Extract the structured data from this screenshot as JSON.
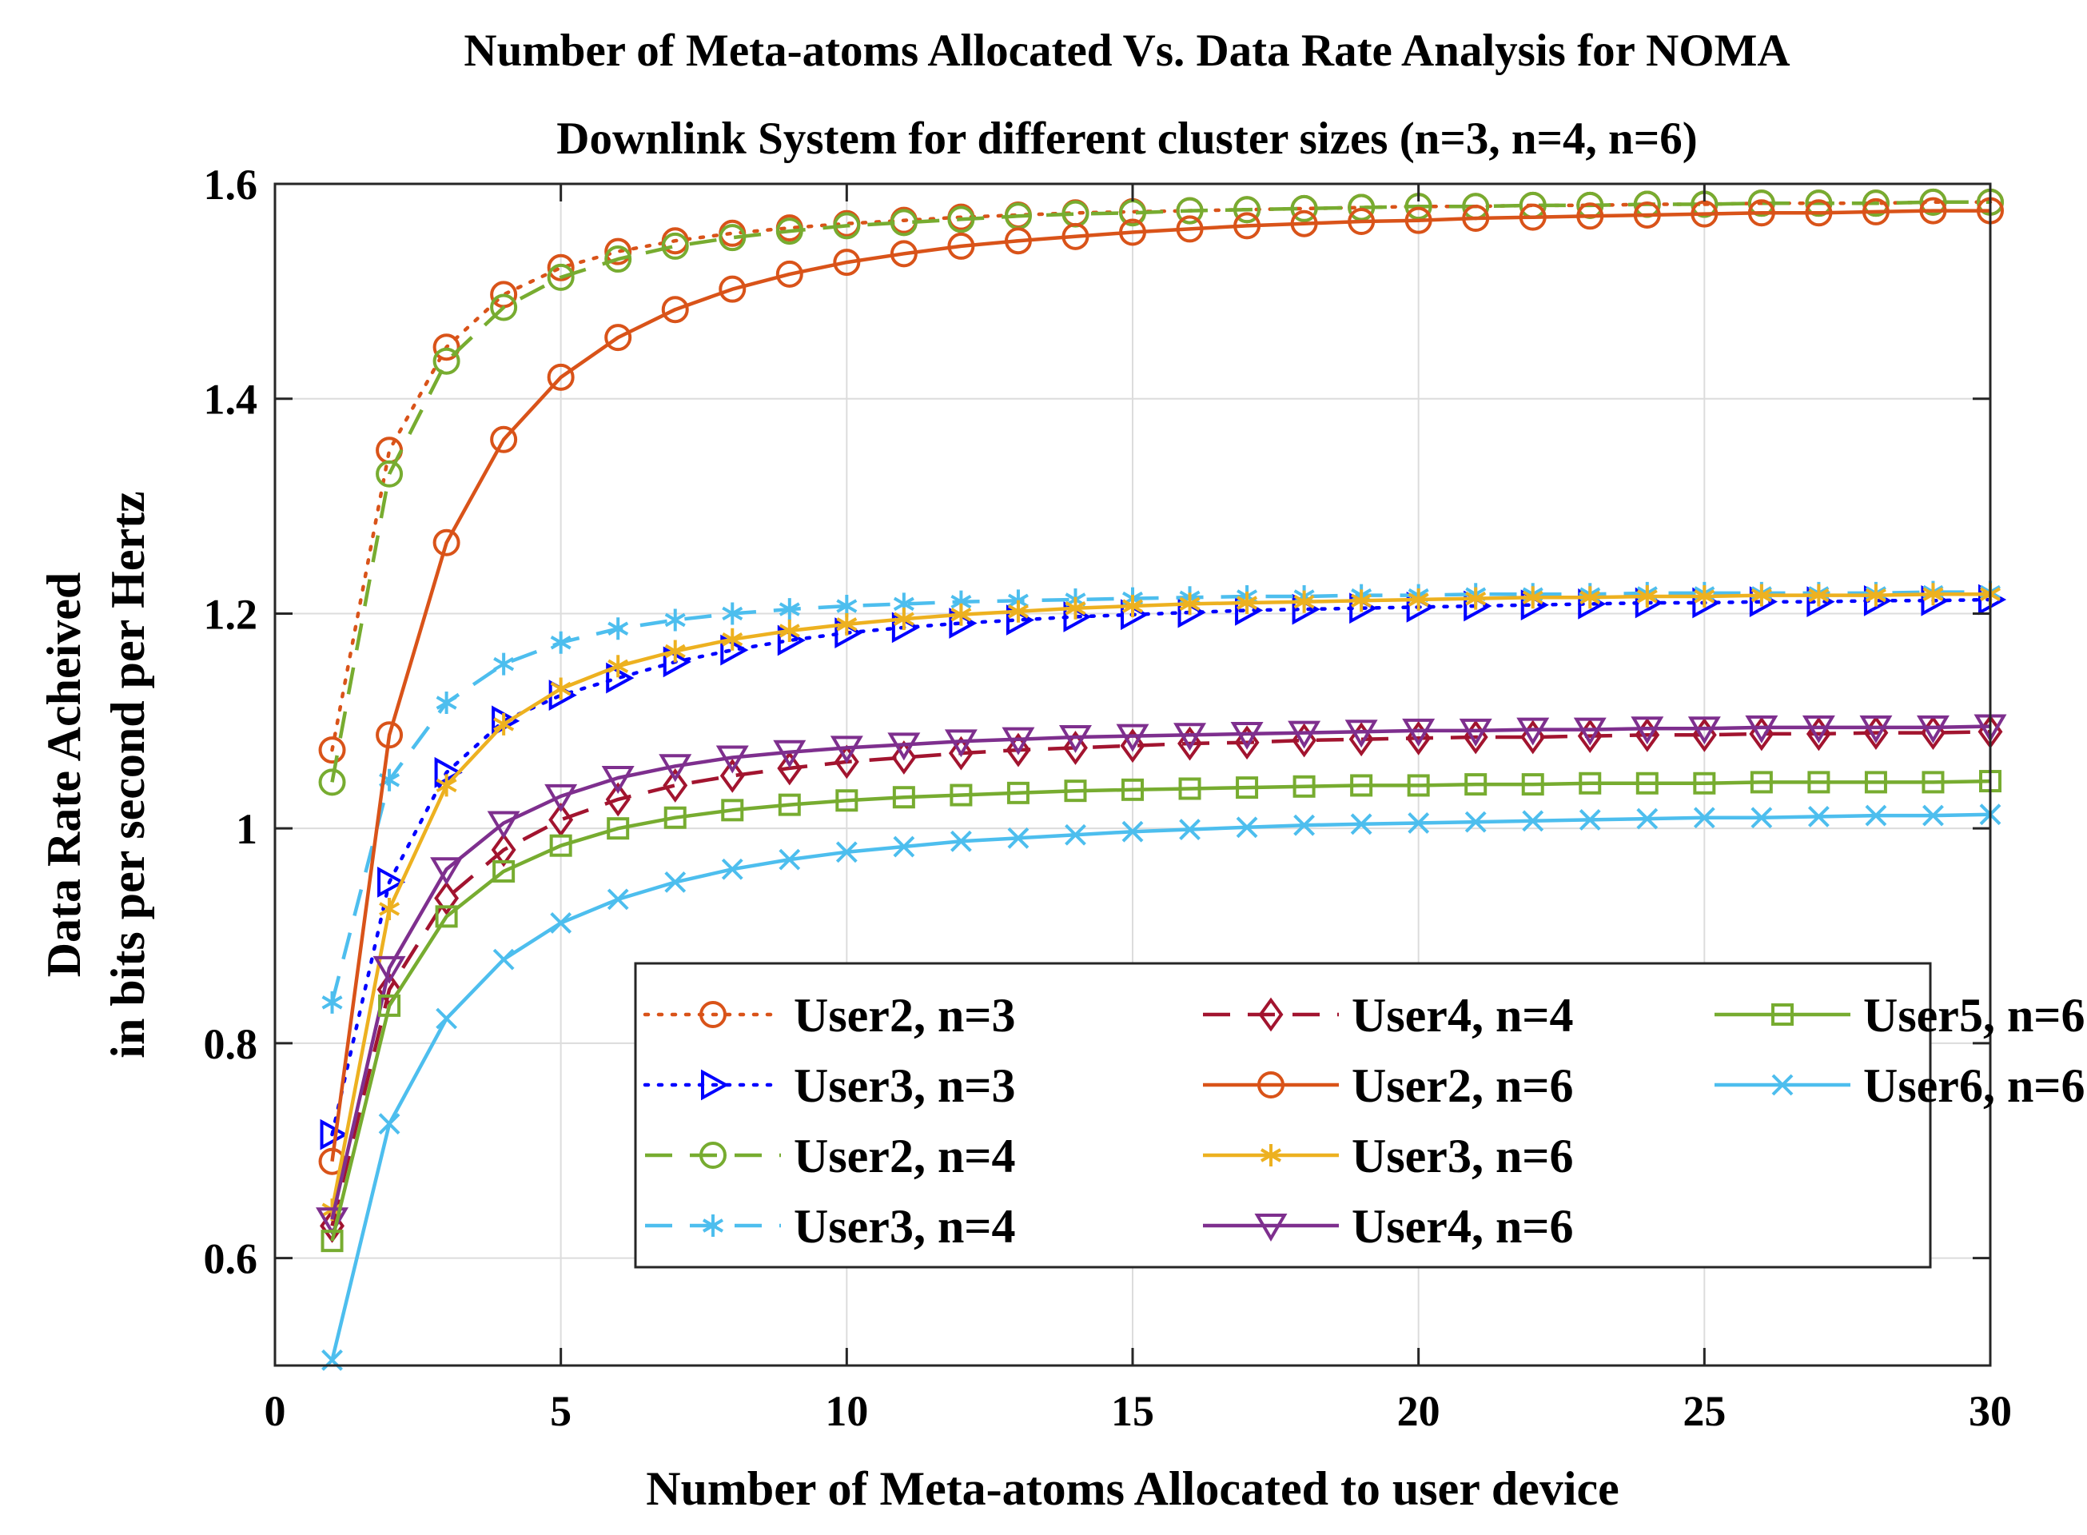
{
  "chart_data": {
    "type": "line",
    "title_lines": [
      "Number of Meta-atoms Allocated Vs. Data Rate Analysis for NOMA",
      "Downlink System for different cluster sizes (n=3, n=4, n=6)"
    ],
    "xlabel": "Number of Meta-atoms Allocated to user device",
    "ylabel_lines": [
      "Data Rate Acheived",
      "in bits per second per Hertz"
    ],
    "xlim": [
      0,
      30
    ],
    "ylim": [
      0.5,
      1.6
    ],
    "xticks": [
      0,
      5,
      10,
      15,
      20,
      25,
      30
    ],
    "xtick_labels": [
      "0",
      "5",
      "10",
      "15",
      "20",
      "25",
      "30"
    ],
    "yticks": [
      0.6,
      0.8,
      1.0,
      1.2,
      1.4,
      1.6
    ],
    "ytick_labels": [
      "0.6",
      "0.8",
      "1",
      "1.2",
      "1.4",
      "1.6"
    ],
    "grid": true,
    "legend_position": "bottom-right",
    "x": [
      1,
      2,
      3,
      4,
      5,
      6,
      7,
      8,
      9,
      10,
      11,
      12,
      13,
      14,
      15,
      16,
      17,
      18,
      19,
      20,
      21,
      22,
      23,
      24,
      25,
      26,
      27,
      28,
      29,
      30
    ],
    "series": [
      {
        "name": "User2, n=3",
        "color": "#D95319",
        "dash": "dotted",
        "marker": "circle",
        "values": [
          1.073,
          1.352,
          1.448,
          1.497,
          1.522,
          1.537,
          1.547,
          1.554,
          1.559,
          1.563,
          1.566,
          1.569,
          1.571,
          1.573,
          1.574,
          1.575,
          1.576,
          1.577,
          1.578,
          1.579,
          1.579,
          1.58,
          1.58,
          1.581,
          1.581,
          1.582,
          1.582,
          1.582,
          1.583,
          1.583
        ]
      },
      {
        "name": "User3, n=3",
        "color": "#0000FF",
        "dash": "dotted",
        "marker": "triangle-right",
        "values": [
          0.715,
          0.95,
          1.052,
          1.1,
          1.124,
          1.14,
          1.155,
          1.166,
          1.175,
          1.182,
          1.187,
          1.191,
          1.194,
          1.197,
          1.199,
          1.201,
          1.203,
          1.204,
          1.205,
          1.206,
          1.207,
          1.208,
          1.209,
          1.21,
          1.21,
          1.211,
          1.211,
          1.212,
          1.212,
          1.213
        ]
      },
      {
        "name": "User2, n=4",
        "color": "#77AC30",
        "dash": "dashed",
        "marker": "circle",
        "values": [
          1.043,
          1.33,
          1.435,
          1.485,
          1.513,
          1.53,
          1.542,
          1.55,
          1.556,
          1.561,
          1.564,
          1.567,
          1.57,
          1.572,
          1.573,
          1.575,
          1.576,
          1.577,
          1.578,
          1.579,
          1.579,
          1.58,
          1.58,
          1.581,
          1.581,
          1.582,
          1.582,
          1.582,
          1.583,
          1.583
        ]
      },
      {
        "name": "User3, n=4",
        "color": "#4DBEEE",
        "dash": "dashed",
        "marker": "asterisk",
        "values": [
          0.838,
          1.045,
          1.117,
          1.153,
          1.173,
          1.186,
          1.194,
          1.2,
          1.204,
          1.207,
          1.209,
          1.211,
          1.212,
          1.213,
          1.214,
          1.215,
          1.216,
          1.216,
          1.217,
          1.217,
          1.218,
          1.218,
          1.218,
          1.219,
          1.219,
          1.219,
          1.219,
          1.219,
          1.22,
          1.22
        ]
      },
      {
        "name": "User4, n=4",
        "color": "#A2142F",
        "dash": "dashed",
        "marker": "diamond",
        "values": [
          0.63,
          0.85,
          0.935,
          0.98,
          1.008,
          1.027,
          1.04,
          1.049,
          1.056,
          1.062,
          1.066,
          1.07,
          1.073,
          1.075,
          1.077,
          1.079,
          1.08,
          1.082,
          1.083,
          1.084,
          1.085,
          1.085,
          1.086,
          1.087,
          1.087,
          1.088,
          1.088,
          1.089,
          1.089,
          1.09
        ]
      },
      {
        "name": "User2, n=6",
        "color": "#D95319",
        "dash": "solid",
        "marker": "circle",
        "values": [
          0.69,
          1.087,
          1.266,
          1.362,
          1.42,
          1.457,
          1.483,
          1.502,
          1.516,
          1.527,
          1.535,
          1.542,
          1.547,
          1.551,
          1.555,
          1.558,
          1.561,
          1.563,
          1.565,
          1.566,
          1.568,
          1.569,
          1.57,
          1.571,
          1.572,
          1.573,
          1.573,
          1.574,
          1.575,
          1.575
        ]
      },
      {
        "name": "User3, n=6",
        "color": "#EDB120",
        "dash": "solid",
        "marker": "asterisk",
        "values": [
          0.645,
          0.925,
          1.04,
          1.097,
          1.13,
          1.151,
          1.165,
          1.176,
          1.184,
          1.19,
          1.195,
          1.199,
          1.202,
          1.205,
          1.207,
          1.209,
          1.21,
          1.211,
          1.212,
          1.213,
          1.214,
          1.215,
          1.215,
          1.216,
          1.216,
          1.217,
          1.217,
          1.217,
          1.218,
          1.218
        ]
      },
      {
        "name": "User4, n=6",
        "color": "#7E2F8E",
        "dash": "solid",
        "marker": "triangle-down",
        "values": [
          0.636,
          0.87,
          0.962,
          1.005,
          1.03,
          1.047,
          1.058,
          1.066,
          1.071,
          1.075,
          1.078,
          1.081,
          1.083,
          1.085,
          1.086,
          1.087,
          1.088,
          1.089,
          1.09,
          1.091,
          1.091,
          1.092,
          1.092,
          1.093,
          1.093,
          1.094,
          1.094,
          1.094,
          1.094,
          1.095
        ]
      },
      {
        "name": "User5, n=6",
        "color": "#77AC30",
        "dash": "solid",
        "marker": "square",
        "values": [
          0.616,
          0.835,
          0.918,
          0.96,
          0.984,
          1.0,
          1.01,
          1.017,
          1.022,
          1.026,
          1.029,
          1.031,
          1.033,
          1.035,
          1.036,
          1.037,
          1.038,
          1.039,
          1.04,
          1.04,
          1.041,
          1.041,
          1.042,
          1.042,
          1.042,
          1.043,
          1.043,
          1.043,
          1.043,
          1.044
        ]
      },
      {
        "name": "User6, n=6",
        "color": "#4DBEEE",
        "dash": "solid",
        "marker": "x",
        "values": [
          0.505,
          0.725,
          0.823,
          0.878,
          0.912,
          0.934,
          0.95,
          0.962,
          0.971,
          0.978,
          0.983,
          0.988,
          0.991,
          0.994,
          0.997,
          0.999,
          1.001,
          1.003,
          1.004,
          1.005,
          1.006,
          1.007,
          1.008,
          1.009,
          1.01,
          1.01,
          1.011,
          1.012,
          1.012,
          1.013
        ]
      }
    ]
  }
}
